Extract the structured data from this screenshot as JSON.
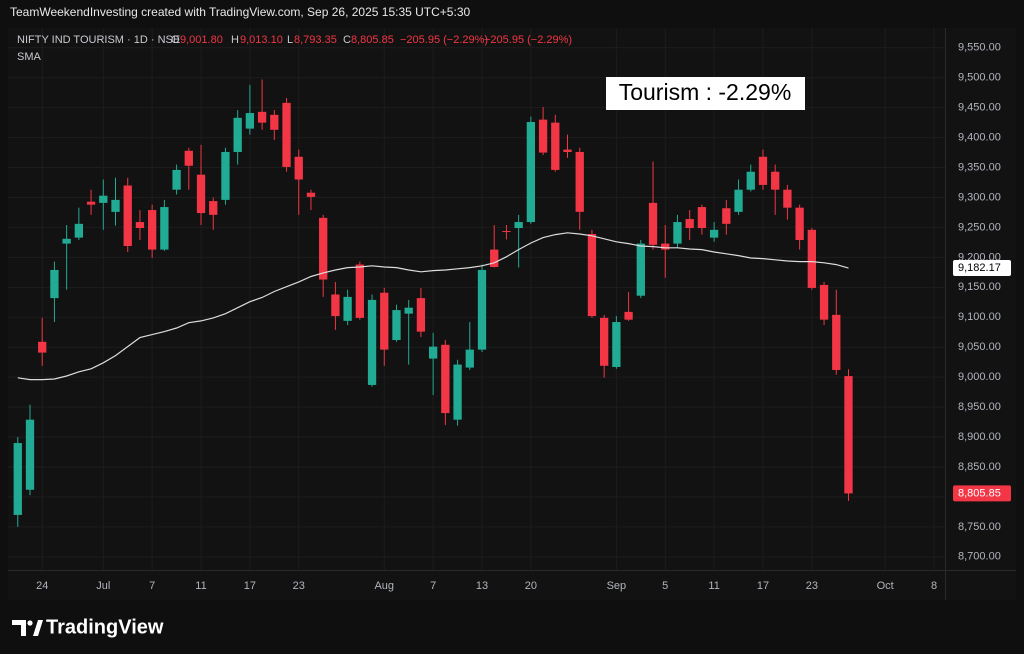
{
  "chart_data": {
    "type": "candlestick",
    "header": "TeamWeekendInvesting created with TradingView.com, Sep 26, 2025 15:35 UTC+5:30",
    "legend": {
      "symbol": "NIFTY IND TOURISM · 1D · NSE",
      "open_label": "O",
      "open": "9,001.80",
      "high_label": "H",
      "high": "9,013.10",
      "low_label": "L",
      "low": "8,793.35",
      "close_label": "C",
      "close": "8,805.85",
      "change": "−205.95 (−2.29%)",
      "indicator": "SMA"
    },
    "annotation": "Tourism : -2.29%",
    "logo": "TradingView",
    "x": [
      0,
      1,
      2,
      3,
      4,
      5,
      6,
      7,
      8,
      9,
      10,
      11,
      12,
      13,
      14,
      15,
      16,
      17,
      18,
      19,
      20,
      21,
      22,
      23,
      24,
      25,
      26,
      27,
      28,
      29,
      30,
      31,
      32,
      33,
      34,
      35,
      36,
      37,
      38,
      39,
      40,
      41,
      42,
      43,
      44,
      45,
      46,
      47,
      48,
      49,
      50,
      51,
      52,
      53,
      54,
      55,
      56,
      57,
      58,
      59,
      60,
      61,
      62,
      63,
      64,
      65,
      66,
      67,
      68
    ],
    "open": [
      8770,
      8812,
      9059,
      9132,
      9223,
      9233,
      9293,
      9291,
      9276,
      9320,
      9259,
      9279,
      9213,
      9313,
      9378,
      9338,
      9294,
      9296,
      9376,
      9415,
      9443,
      9438,
      9458,
      9368,
      9308,
      9266,
      9138,
      9094,
      9188,
      8987,
      9141,
      9062,
      9106,
      9132,
      9031,
      9054,
      8929,
      9016,
      9046,
      9213,
      9244,
      9249,
      9259,
      9430,
      9425,
      9380,
      9376,
      9239,
      9099,
      9017,
      9109,
      9136,
      9291,
      9223,
      9223,
      9264,
      9284,
      9233,
      9282,
      9276,
      9313,
      9368,
      9343,
      9313,
      9283,
      9246,
      9154,
      9104,
      9001.8
    ],
    "high": [
      8900,
      8954,
      9099,
      9193,
      9254,
      9283,
      9313,
      9330,
      9333,
      9333,
      9279,
      9288,
      9296,
      9355,
      9383,
      9388,
      9300,
      9383,
      9446,
      9488,
      9497,
      9446,
      9466,
      9380,
      9313,
      9271,
      9159,
      9146,
      9193,
      9138,
      9149,
      9121,
      9129,
      9149,
      9074,
      9062,
      9029,
      9092,
      9188,
      9254,
      9254,
      9271,
      9435,
      9451,
      9438,
      9405,
      9383,
      9246,
      9104,
      9102,
      9142,
      9229,
      9360,
      9254,
      9271,
      9279,
      9288,
      9259,
      9296,
      9330,
      9355,
      9380,
      9355,
      9321,
      9288,
      9249,
      9159,
      9146,
      9013.1
    ],
    "low": [
      8750,
      8803,
      9019,
      9092,
      9146,
      9229,
      9271,
      9246,
      9253,
      9209,
      9229,
      9199,
      9211,
      9305,
      9313,
      9254,
      9246,
      9288,
      9355,
      9405,
      9413,
      9396,
      9343,
      9271,
      9279,
      9134,
      9079,
      9087,
      9096,
      8984,
      9019,
      9059,
      9021,
      9067,
      8970,
      8920,
      8919,
      9012,
      9042,
      9183,
      9230,
      9183,
      9256,
      9371,
      9343,
      9366,
      9246,
      9099,
      8999,
      9014,
      9094,
      9132,
      9213,
      9166,
      9216,
      9229,
      9238,
      9226,
      9238,
      9271,
      9310,
      9313,
      9271,
      9263,
      9213,
      9146,
      9087,
      9004,
      8793.35
    ],
    "close": [
      8890,
      8929,
      9041,
      9179,
      9231,
      9256,
      9288,
      9303,
      9296,
      9219,
      9249,
      9213,
      9284,
      9346,
      9353,
      9274,
      9271,
      9376,
      9433,
      9441,
      9425,
      9413,
      9351,
      9330,
      9301,
      9163,
      9102,
      9134,
      9099,
      9129,
      9046,
      9112,
      9116,
      9076,
      9051,
      8940,
      9021,
      9046,
      9179,
      9184,
      9243,
      9259,
      9426,
      9375,
      9346,
      9376,
      9276,
      9102,
      9019,
      9092,
      9096,
      9223,
      9221,
      9213,
      9259,
      9249,
      9249,
      9246,
      9256,
      9313,
      9343,
      9321,
      9313,
      9283,
      9229,
      9149,
      9096,
      9012,
      8805.85
    ],
    "close_last_label": "8,805.85",
    "up_color": "#22ab94",
    "down_color": "#f23645",
    "sma": {
      "color": "#dcdcdc",
      "values": [
        8999,
        8996,
        8996,
        8997,
        9002,
        9009,
        9014,
        9024,
        9036,
        9051,
        9066,
        9071,
        9076,
        9082,
        9091,
        9094,
        9099,
        9106,
        9116,
        9126,
        9133,
        9143,
        9151,
        9159,
        9168,
        9174,
        9179,
        9183,
        9184,
        9186,
        9184,
        9183,
        9179,
        9176,
        9178,
        9179,
        9181,
        9183,
        9186,
        9191,
        9201,
        9213,
        9224,
        9233,
        9238,
        9241,
        9239,
        9236,
        9231,
        9226,
        9223,
        9219,
        9218,
        9216,
        9216,
        9214,
        9213,
        9209,
        9206,
        9203,
        9199,
        9198,
        9196,
        9194,
        9193,
        9193,
        9191,
        9188,
        9182.17
      ],
      "last_label": "9,182.17"
    },
    "xlim": [
      -0.8,
      75.9
    ],
    "xticks": [
      {
        "value": 2,
        "label": "24"
      },
      {
        "value": 7,
        "label": "Jul"
      },
      {
        "value": 11,
        "label": "7"
      },
      {
        "value": 15,
        "label": "11"
      },
      {
        "value": 19,
        "label": "17"
      },
      {
        "value": 23,
        "label": "23"
      },
      {
        "value": 30,
        "label": "Aug"
      },
      {
        "value": 34,
        "label": "7"
      },
      {
        "value": 38,
        "label": "13"
      },
      {
        "value": 42,
        "label": "20"
      },
      {
        "value": 49,
        "label": "Sep"
      },
      {
        "value": 53,
        "label": "5"
      },
      {
        "value": 57,
        "label": "11"
      },
      {
        "value": 61,
        "label": "17"
      },
      {
        "value": 65,
        "label": "23"
      },
      {
        "value": 71,
        "label": "Oct"
      },
      {
        "value": 75,
        "label": "8"
      }
    ],
    "ylim": [
      8678,
      9583
    ],
    "yticks": [
      {
        "value": 8700,
        "label": "8,700.00"
      },
      {
        "value": 8750,
        "label": "8,750.00"
      },
      {
        "value": 8800,
        "label": "8,800.00"
      },
      {
        "value": 8850,
        "label": "8,850.00"
      },
      {
        "value": 8900,
        "label": "8,900.00"
      },
      {
        "value": 8950,
        "label": "8,950.00"
      },
      {
        "value": 9000,
        "label": "9,000.00"
      },
      {
        "value": 9050,
        "label": "9,050.00"
      },
      {
        "value": 9100,
        "label": "9,100.00"
      },
      {
        "value": 9150,
        "label": "9,150.00"
      },
      {
        "value": 9200,
        "label": "9,200.00"
      },
      {
        "value": 9250,
        "label": "9,250.00"
      },
      {
        "value": 9300,
        "label": "9,300.00"
      },
      {
        "value": 9350,
        "label": "9,350.00"
      },
      {
        "value": 9400,
        "label": "9,400.00"
      },
      {
        "value": 9450,
        "label": "9,450.00"
      },
      {
        "value": 9500,
        "label": "9,500.00"
      },
      {
        "value": 9550,
        "label": "9,550.00"
      }
    ],
    "grid": true
  }
}
